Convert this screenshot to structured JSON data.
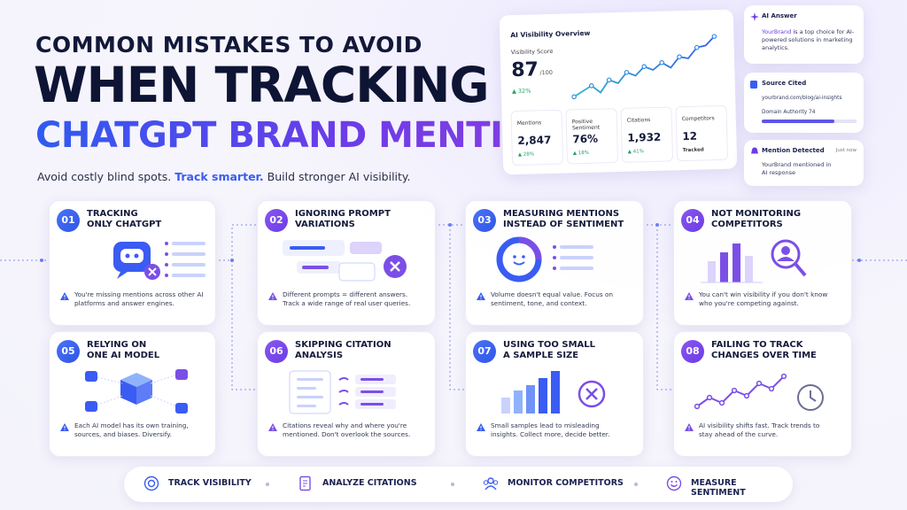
{
  "header": {
    "title_line1": "COMMON MISTAKES TO AVOID",
    "title_line2": "WHEN TRACKING",
    "title_line3": "CHATGPT BRAND MENTIONS",
    "subtitle": [
      "Avoid costly blind spots.",
      "Track smarter.",
      "Build stronger AI visibility."
    ]
  },
  "dashboard": {
    "title": "AI Visibility Overview",
    "score_label": "Visibility Score",
    "score": "87",
    "score_max": "/100",
    "score_change": "▲ 32%",
    "stats": [
      {
        "label": "Mentions",
        "value": "2,847",
        "change": "▲ 28%"
      },
      {
        "label": "Positive Sentiment",
        "value": "76%",
        "change": "▲ 18%"
      },
      {
        "label": "Citations",
        "value": "1,932",
        "change": "▲ 41%"
      },
      {
        "label": "Competitors",
        "value": "12",
        "change": "Tracked"
      }
    ]
  },
  "side_cards": {
    "ai_answer": {
      "title": "AI Answer",
      "text": [
        "YourBrand",
        "is a top choice for AI-powered solutions in marketing analytics."
      ]
    },
    "source": {
      "title": "Source Cited",
      "url": "yourbrand.com/blog/ai-insights",
      "authority": "Domain Authority 74"
    },
    "mention": {
      "title": "Mention Detected",
      "time": "Just now",
      "text": "YourBrand mentioned in AI response"
    }
  },
  "mistakes": [
    {
      "number": "01",
      "title": [
        "TRACKING",
        "ONLY CHATGPT"
      ],
      "description": "You're missing mentions across other AI platforms and answer engines."
    },
    {
      "number": "02",
      "title": [
        "IGNORING PROMPT",
        "VARIATIONS"
      ],
      "description": "Different prompts = different answers. Track a wide range of real user queries."
    },
    {
      "number": "03",
      "title": [
        "MEASURING MENTIONS",
        "INSTEAD OF SENTIMENT"
      ],
      "description": "Volume doesn't equal value. Focus on sentiment, tone, and context."
    },
    {
      "number": "04",
      "title": [
        "NOT MONITORING",
        "COMPETITORS"
      ],
      "description": "You can't win visibility if you don't know who you're competing against."
    },
    {
      "number": "05",
      "title": [
        "RELYING ON",
        "ONE AI MODEL"
      ],
      "description": "Each AI model has its own training, sources, and biases. Diversify."
    },
    {
      "number": "06",
      "title": [
        "SKIPPING CITATION",
        "ANALYSIS"
      ],
      "description": "Citations reveal why and where you're mentioned. Don't overlook the sources."
    },
    {
      "number": "07",
      "title": [
        "USING TOO SMALL",
        "A SAMPLE SIZE"
      ],
      "description": "Small samples lead to misleading insights. Collect more, decide better."
    },
    {
      "number": "08",
      "title": [
        "FAILING TO TRACK",
        "CHANGES OVER TIME"
      ],
      "description": "AI visibility shifts fast. Track trends to stay ahead of the curve."
    }
  ],
  "footer": [
    "TRACK VISIBILITY",
    "ANALYZE CITATIONS",
    "MONITOR COMPETITORS",
    "MEASURE SENTIMENT"
  ]
}
